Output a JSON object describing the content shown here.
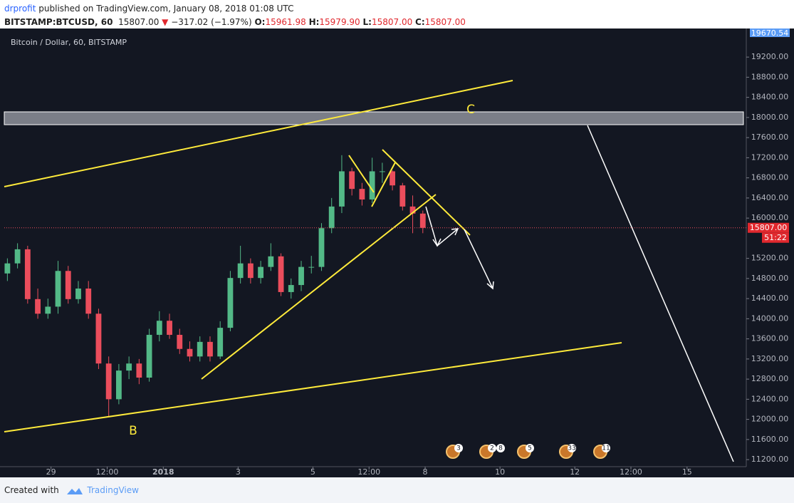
{
  "header": {
    "author": "drprofit",
    "published": "published on TradingView.com, January 08, 2018 01:08 UTC",
    "symbol": "BITSTAMP:BTCUSD, 60",
    "price": "15807.00",
    "change": "−317.02 (−1.97%)",
    "ohlc": [
      {
        "key": "O:",
        "value": "15961.98"
      },
      {
        "key": "H:",
        "value": "15979.90"
      },
      {
        "key": "L:",
        "value": "15807.00"
      },
      {
        "key": "C:",
        "value": "15807.00"
      }
    ]
  },
  "chart_data": {
    "type": "candlestick",
    "title": "Bitcoin / Dollar, 60, BITSTAMP",
    "x": [
      -28,
      -21.5,
      -15,
      -8.5,
      -2,
      4.5,
      11,
      17.5,
      24,
      30.5,
      37,
      43.5,
      50,
      56.5,
      63,
      69.5,
      76,
      82.5,
      89,
      95.5,
      102,
      108.5,
      115,
      121.5,
      128,
      134.5,
      141,
      147.5,
      154,
      160.5,
      167,
      173.5,
      180,
      186.5,
      193,
      199.5,
      206,
      212.5,
      219,
      225.5,
      232,
      238.5
    ],
    "open": [
      14900,
      15100,
      15380,
      14390,
      14100,
      14240,
      14950,
      14390,
      14600,
      14100,
      13110,
      12400,
      12970,
      13110,
      12830,
      13680,
      13960,
      13680,
      13400,
      13250,
      13540,
      13250,
      13820,
      14810,
      15100,
      14810,
      15030,
      15240,
      14530,
      14670,
      15030,
      15030,
      15800,
      16230,
      16930,
      16580,
      16370,
      16930,
      16930,
      16650,
      16230,
      16090
    ],
    "high": [
      15200,
      15500,
      15450,
      14600,
      14400,
      15150,
      15050,
      14750,
      14750,
      14200,
      13250,
      13100,
      13250,
      13200,
      13800,
      14150,
      14100,
      13800,
      13550,
      13650,
      13650,
      13950,
      14950,
      15450,
      15200,
      15150,
      15500,
      15300,
      14800,
      15150,
      15250,
      15900,
      16400,
      17250,
      17000,
      16700,
      17200,
      17100,
      16950,
      16700,
      16450,
      16150
    ],
    "low": [
      14750,
      15000,
      14300,
      14000,
      14000,
      14100,
      14300,
      14300,
      14000,
      13000,
      12050,
      12300,
      12800,
      12700,
      12750,
      13550,
      13600,
      13300,
      13150,
      13150,
      13150,
      13200,
      13750,
      14700,
      14700,
      14700,
      14950,
      14450,
      14400,
      14550,
      14900,
      14950,
      15700,
      16100,
      16450,
      16250,
      16300,
      16700,
      16550,
      16150,
      15700,
      15700
    ],
    "close": [
      15100,
      15380,
      14390,
      14100,
      14240,
      14950,
      14390,
      14600,
      14100,
      13110,
      12400,
      12970,
      13110,
      12830,
      13680,
      13960,
      13680,
      13400,
      13250,
      13540,
      13250,
      13820,
      14810,
      15100,
      14810,
      15030,
      15240,
      14530,
      14670,
      15030,
      15030,
      15800,
      16230,
      16930,
      16580,
      16370,
      16930,
      16930,
      16650,
      16230,
      16090,
      15807
    ],
    "up_color": "#53b987",
    "down_color": "#eb4d5c",
    "xlim": [
      -30,
      446
    ],
    "ylim": [
      11060,
      19740
    ],
    "xticks": [
      {
        "value": 0,
        "label": "29"
      },
      {
        "value": 36,
        "label": "12:00"
      },
      {
        "value": 72,
        "label": "2018"
      },
      {
        "value": 120,
        "label": "3"
      },
      {
        "value": 168,
        "label": "5"
      },
      {
        "value": 204,
        "label": "12:00"
      },
      {
        "value": 240,
        "label": "8"
      },
      {
        "value": 288,
        "label": "10"
      },
      {
        "value": 336,
        "label": "12"
      },
      {
        "value": 372,
        "label": "12:00"
      },
      {
        "value": 408,
        "label": "15"
      }
    ],
    "yticks": [
      {
        "value": 11200,
        "label": "11200.00"
      },
      {
        "value": 11600,
        "label": "11600.00"
      },
      {
        "value": 12000,
        "label": "12000.00"
      },
      {
        "value": 12400,
        "label": "12400.00"
      },
      {
        "value": 12800,
        "label": "12800.00"
      },
      {
        "value": 13200,
        "label": "13200.00"
      },
      {
        "value": 13600,
        "label": "13600.00"
      },
      {
        "value": 14000,
        "label": "14000.00"
      },
      {
        "value": 14400,
        "label": "14400.00"
      },
      {
        "value": 14800,
        "label": "14800.00"
      },
      {
        "value": 15200,
        "label": "15200.00"
      },
      {
        "value": 16000,
        "label": "16000.00"
      },
      {
        "value": 16400,
        "label": "16400.00"
      },
      {
        "value": 16800,
        "label": "16800.00"
      },
      {
        "value": 17200,
        "label": "17200.00"
      },
      {
        "value": 17600,
        "label": "17600.00"
      },
      {
        "value": 18000,
        "label": "18000.00"
      },
      {
        "value": 18400,
        "label": "18400.00"
      },
      {
        "value": 18800,
        "label": "18800.00"
      },
      {
        "value": 19200,
        "label": "19200.00"
      }
    ],
    "high_label": "19670.54",
    "last_label": "15807.00",
    "countdown": "51:22",
    "annotations": [
      "C",
      "B"
    ],
    "events": [
      "3",
      "2",
      "8",
      "5",
      "33",
      "11"
    ]
  },
  "footer": {
    "created": "Created with",
    "brand": "TradingView"
  }
}
